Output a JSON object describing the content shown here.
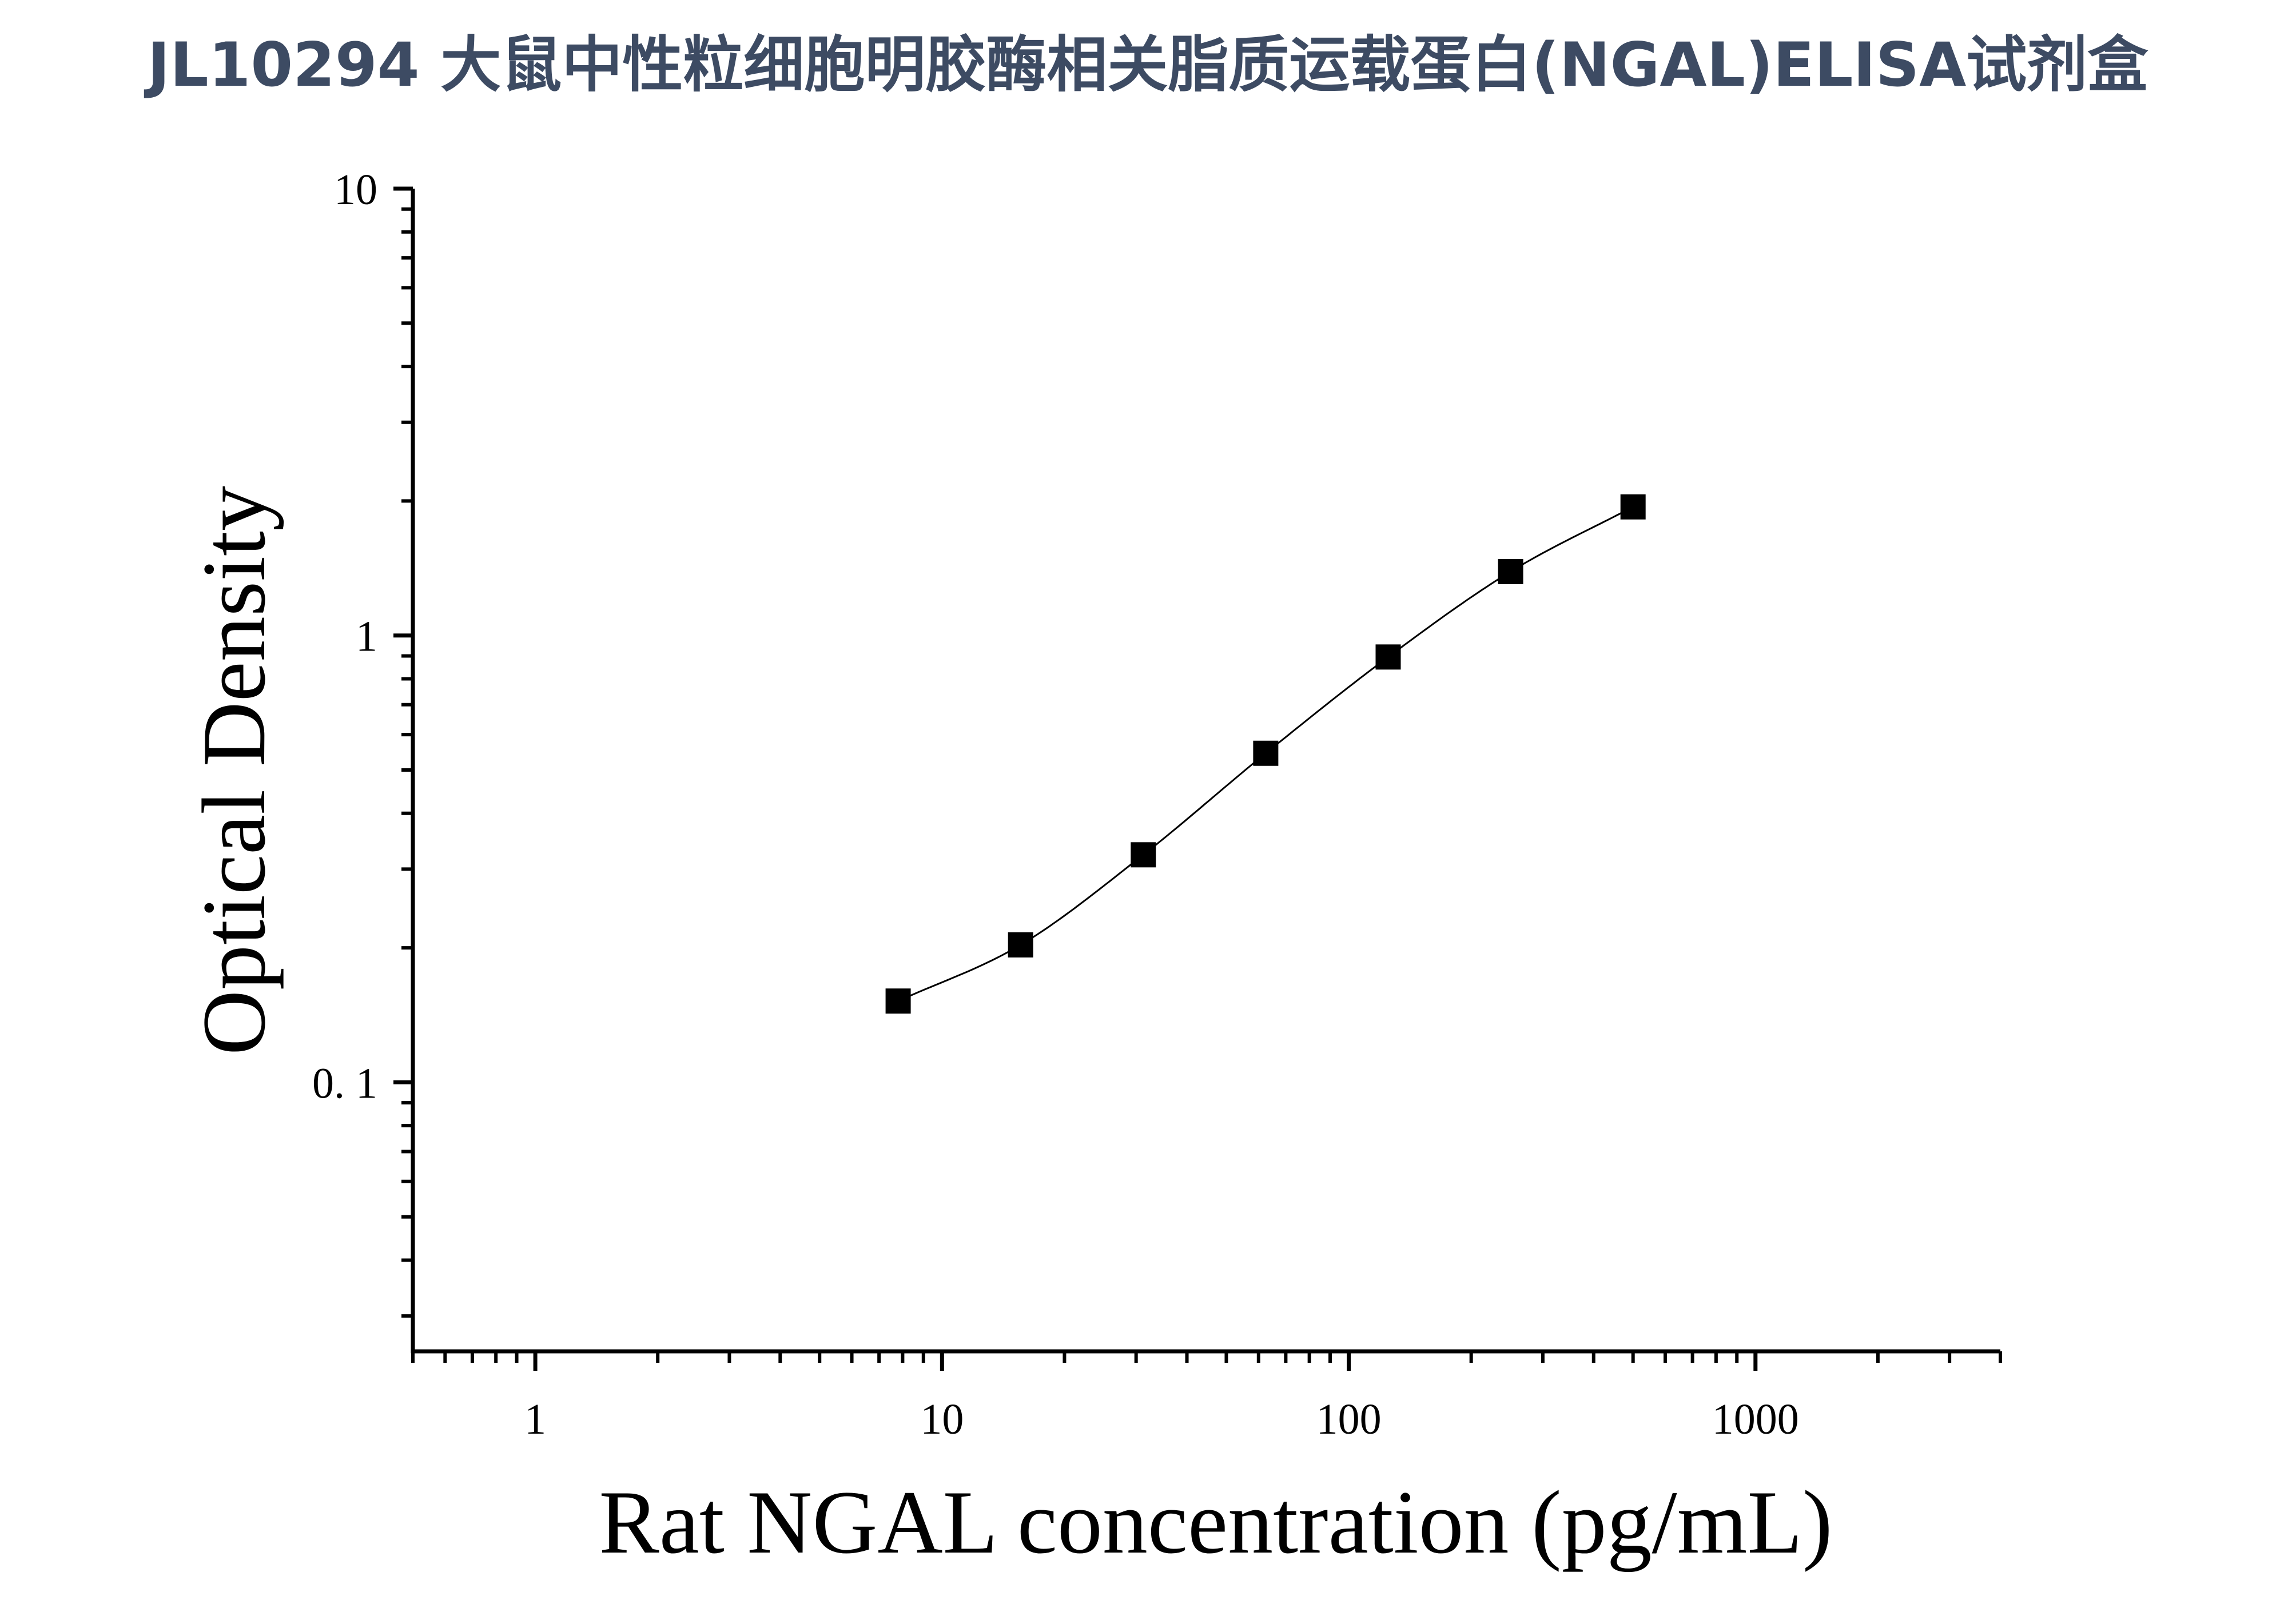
{
  "title": "JL10294 大鼠中性粒细胞明胶酶相关脂质运载蛋白(NGAL)ELISA试剂盒",
  "colors": {
    "title": "#3d4b63",
    "axis": "#000000",
    "marker": "#000000",
    "curve": "#000000",
    "background": "#ffffff"
  },
  "chart_data": {
    "type": "scatter",
    "title": "JL10294 大鼠中性粒细胞明胶酶相关脂质运载蛋白(NGAL)ELISA试剂盒",
    "xlabel": "Rat NGAL concentration (pg/mL)",
    "ylabel": "Optical Density",
    "xscale": "log",
    "yscale": "log",
    "xlim": [
      0.5,
      4000
    ],
    "ylim": [
      0.025,
      10
    ],
    "x_ticks": [
      {
        "value": 1,
        "label": "1"
      },
      {
        "value": 10,
        "label": "10"
      },
      {
        "value": 100,
        "label": "100"
      },
      {
        "value": 1000,
        "label": "1000"
      }
    ],
    "y_ticks": [
      {
        "value": 0.1,
        "label": "0. 1"
      },
      {
        "value": 1,
        "label": "1"
      },
      {
        "value": 10,
        "label": "10"
      }
    ],
    "grid": false,
    "legend": "none",
    "marker": "square",
    "series": [
      {
        "x": [
          7.8,
          15.6,
          31.25,
          62.5,
          125,
          250,
          500
        ],
        "y": [
          0.152,
          0.203,
          0.323,
          0.545,
          0.895,
          1.39,
          1.94
        ],
        "fit_curve": true
      }
    ]
  }
}
